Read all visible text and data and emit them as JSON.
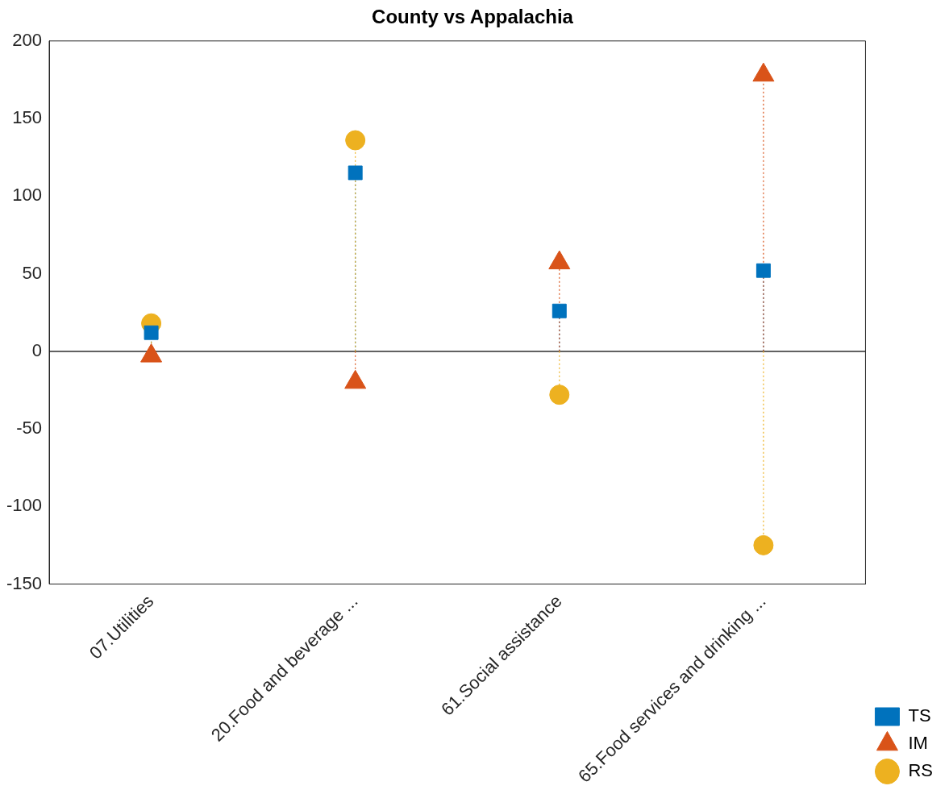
{
  "chart_data": {
    "type": "lollipop",
    "title": "County vs Appalachia",
    "categories": [
      "07.Utilities",
      "20.Food and beverage ...",
      "61.Social assistance",
      "65.Food services and drinking ..."
    ],
    "series": [
      {
        "name": "TS",
        "color": "#0072bd",
        "marker": "square",
        "values": [
          12,
          115,
          26,
          52
        ]
      },
      {
        "name": "IM",
        "color": "#d95319",
        "marker": "triangle",
        "values": [
          -3,
          -20,
          57,
          178
        ]
      },
      {
        "name": "RS",
        "color": "#edb120",
        "marker": "circle",
        "values": [
          18,
          136,
          -28,
          -125
        ]
      }
    ],
    "ylim": [
      -150,
      200
    ],
    "yticks": [
      -150,
      -100,
      -50,
      0,
      50,
      100,
      150,
      200
    ],
    "ref_lines": [
      {
        "axis": "y",
        "value": 0,
        "color": "#000000"
      }
    ],
    "line_style": "dotted",
    "grid": false,
    "legend": "bottom right"
  }
}
